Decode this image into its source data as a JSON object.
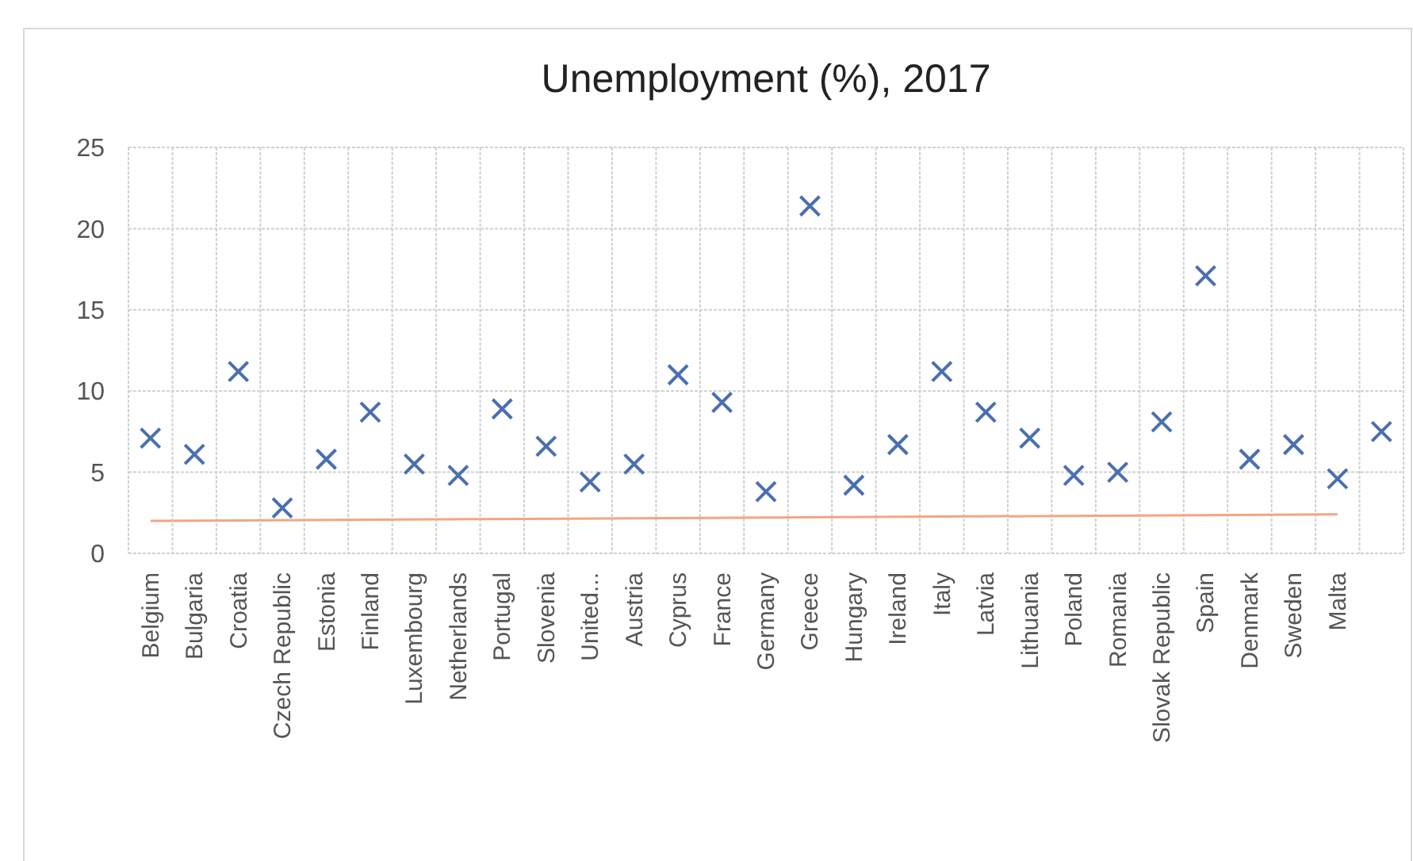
{
  "chart_data": {
    "type": "scatter",
    "title": "Unemployment (%), 2017",
    "categories": [
      "Belgium",
      "Bulgaria",
      "Croatia",
      "Czech Republic",
      "Estonia",
      "Finland",
      "Luxembourg",
      "Netherlands",
      "Portugal",
      "Slovenia",
      "United...",
      "Austria",
      "Cyprus",
      "France",
      "Germany",
      "Greece",
      "Hungary",
      "Ireland",
      "Italy",
      "Latvia",
      "Lithuania",
      "Poland",
      "Romania",
      "Slovak Republic",
      "Spain",
      "Denmark",
      "Sweden",
      "Malta",
      null
    ],
    "series": [
      {
        "color": "#4a6fb0",
        "marker": "cross",
        "values": [
          7.1,
          6.1,
          11.2,
          2.8,
          5.8,
          8.7,
          5.5,
          4.8,
          8.9,
          6.6,
          4.4,
          5.5,
          11.0,
          9.3,
          3.8,
          21.4,
          4.2,
          6.7,
          11.2,
          8.7,
          7.1,
          4.8,
          5.0,
          8.1,
          17.1,
          5.8,
          6.7,
          4.6,
          7.5
        ]
      },
      {
        "type": "line",
        "marker": "none",
        "color": "#f4a582",
        "x": [
          "Belgium",
          "Malta"
        ],
        "values": [
          2.0,
          2.4
        ]
      }
    ],
    "ylim": [
      0,
      25
    ],
    "yticks": [
      0,
      5,
      10,
      15,
      20,
      25
    ],
    "grid": true
  }
}
